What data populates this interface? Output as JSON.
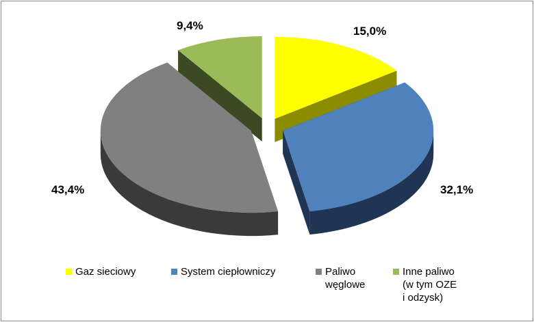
{
  "chart_data": {
    "type": "pie",
    "style": "3d-exploded",
    "title": "",
    "series": [
      {
        "name": "",
        "slices": [
          {
            "label": "Gaz sieciowy",
            "value": 15.0,
            "value_label": "15,0%",
            "color": "#ffff00",
            "side_color": "#8c8c00"
          },
          {
            "label": "System ciepłowniczy",
            "value": 32.1,
            "value_label": "32,1%",
            "color": "#4f81bd",
            "side_color": "#1f3553"
          },
          {
            "label": "Paliwo\nwęglowe",
            "value": 43.4,
            "value_label": "43,4%",
            "color": "#808080",
            "side_color": "#3a3a3a"
          },
          {
            "label": "Inne paliwo\n(w tym OZE\ni odzysk)",
            "value": 9.4,
            "value_label": "9,4%",
            "color": "#9bbb59",
            "side_color": "#3b4a23"
          }
        ]
      }
    ],
    "legend_position": "bottom"
  }
}
